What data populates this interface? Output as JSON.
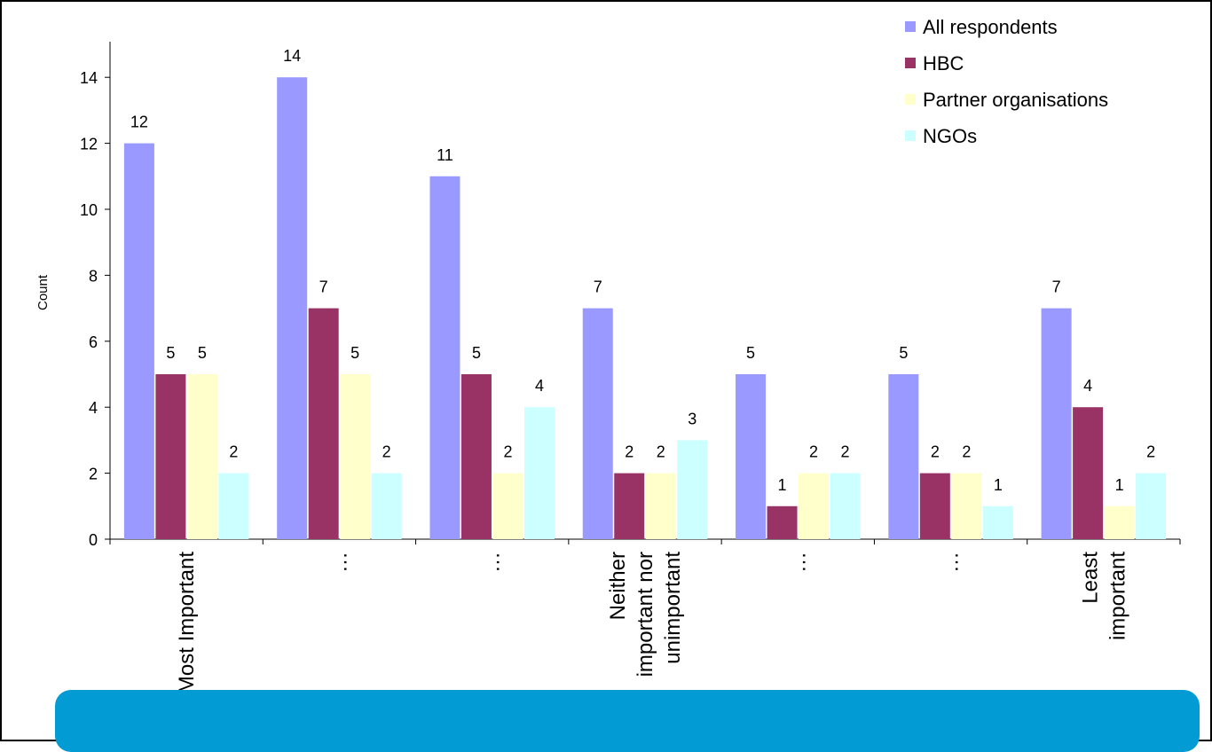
{
  "chart_data": {
    "type": "bar",
    "ylabel": "Count",
    "ylim": [
      0,
      15
    ],
    "yticks": [
      0,
      2,
      4,
      6,
      8,
      10,
      12,
      14
    ],
    "grid": false,
    "legend_position": "top-right",
    "categories": [
      [
        "Most Important"
      ],
      [
        "…"
      ],
      [
        "…"
      ],
      [
        "Neither",
        "important nor",
        "unimportant"
      ],
      [
        "…"
      ],
      [
        "…"
      ],
      [
        "Least",
        "important"
      ]
    ],
    "series": [
      {
        "name": "All respondents",
        "color": "#9999ff",
        "values": [
          12,
          14,
          11,
          7,
          5,
          5,
          7
        ]
      },
      {
        "name": "HBC",
        "color": "#993366",
        "values": [
          5,
          7,
          5,
          2,
          1,
          2,
          4
        ]
      },
      {
        "name": "Partner organisations",
        "color": "#ffffcc",
        "values": [
          5,
          5,
          2,
          2,
          2,
          2,
          1
        ]
      },
      {
        "name": "NGOs",
        "color": "#ccffff",
        "values": [
          2,
          2,
          4,
          3,
          2,
          1,
          2
        ]
      }
    ]
  },
  "banner": {
    "color": "#039bd3"
  }
}
